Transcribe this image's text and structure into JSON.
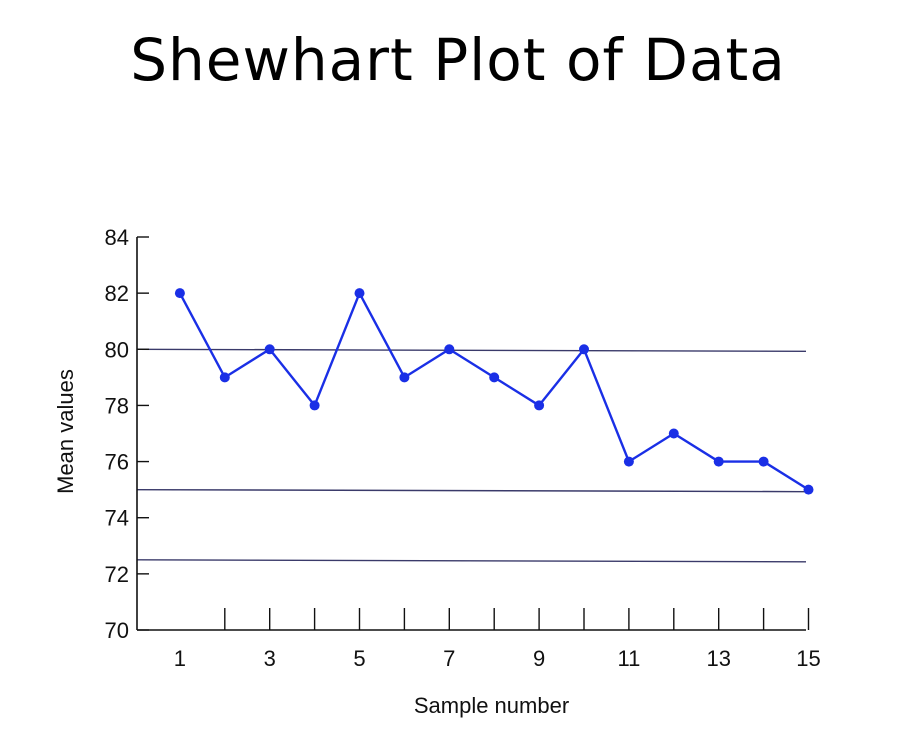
{
  "title": "Shewhart Plot of Data",
  "chart_data": {
    "type": "line",
    "title": "Shewhart Plot of Data",
    "xlabel": "Sample number",
    "ylabel": "Mean values",
    "x": [
      1,
      2,
      3,
      4,
      5,
      6,
      7,
      8,
      9,
      10,
      11,
      12,
      13,
      14,
      15
    ],
    "xticks": [
      1,
      3,
      5,
      7,
      9,
      11,
      13,
      15
    ],
    "yticks": [
      70,
      72,
      74,
      76,
      78,
      80,
      82,
      84
    ],
    "xlim": [
      0,
      15
    ],
    "ylim": [
      70,
      84
    ],
    "series": [
      {
        "values": [
          82,
          79,
          80,
          78,
          82,
          79,
          80,
          79,
          78,
          80,
          76,
          77,
          76,
          76,
          75
        ]
      }
    ],
    "reference_lines": [
      80,
      75,
      72.5
    ],
    "grid": false,
    "colors": {
      "series": "#1a2fe6",
      "reference": "#3a3a6a",
      "axis": "#111111"
    }
  }
}
